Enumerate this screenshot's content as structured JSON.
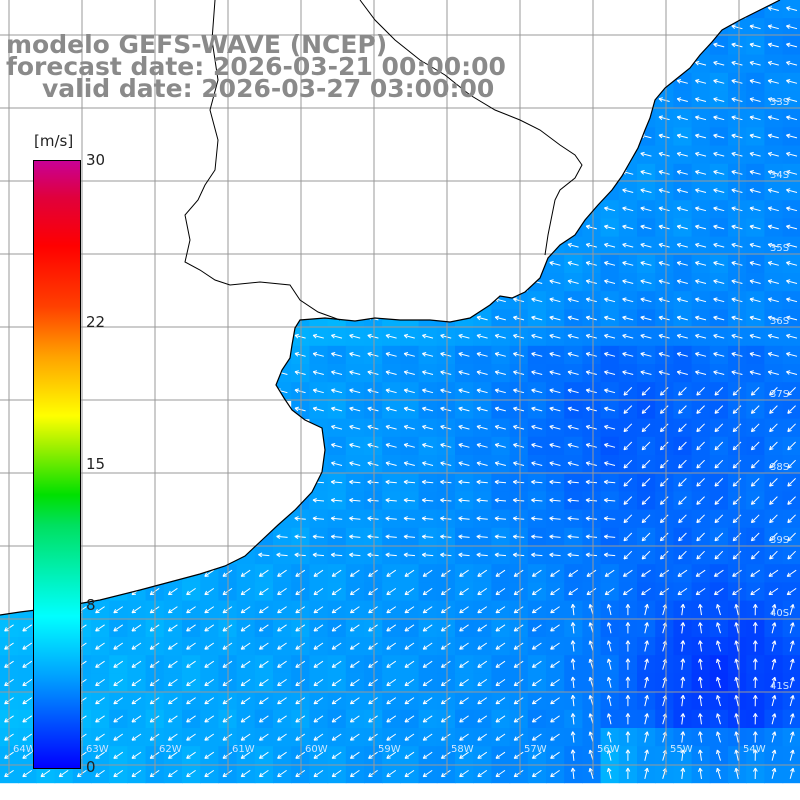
{
  "header": {
    "line1": "modelo GEFS-WAVE (NCEP)",
    "line2": "forecast date: 2026-03-21 00:00:00",
    "line3": "valid date: 2026-03-27 03:00:00"
  },
  "colorbar": {
    "unit": "[m/s]",
    "min": 0,
    "max": 30,
    "ticks": [
      "0",
      "8",
      "15",
      "22",
      "30"
    ],
    "tick_values": [
      0,
      8,
      15,
      22,
      30
    ]
  },
  "colors": {
    "title_text": "#8a8a8a",
    "land": "#ffffff",
    "grid": "#999999",
    "coast": "#000000",
    "arrows": "#ffffff"
  },
  "map": {
    "grid_labels_right": [
      "33S",
      "34S",
      "35S",
      "36S",
      "37S",
      "38S",
      "39S",
      "40S",
      "41S"
    ],
    "grid_labels_bottom": [
      "64W",
      "63W",
      "62W",
      "61W",
      "60W",
      "59W",
      "58W",
      "57W",
      "56W",
      "55W",
      "54W"
    ],
    "field": "wind speed and direction"
  }
}
